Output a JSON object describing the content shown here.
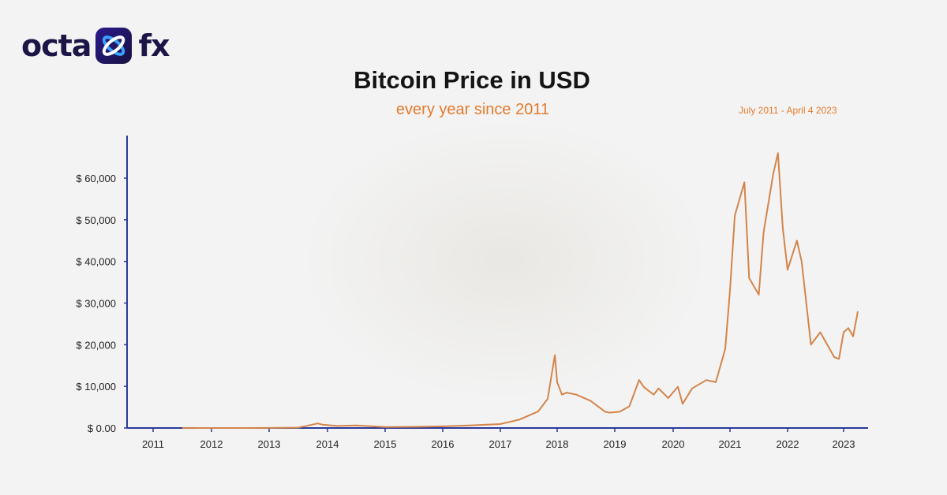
{
  "logo": {
    "left_text": "octa",
    "right_text": "fx",
    "mark_icon": "octafx-x-icon"
  },
  "subtitle": "every year since 2011",
  "date_range": "July 2011 - April 4 2023",
  "colors": {
    "line": "#d4844a",
    "axis": "#2a3a9a",
    "title": "#141414",
    "accent": "#e57a2c",
    "brand": "#1c1646"
  },
  "chart_data": {
    "type": "line",
    "title": "Bitcoin Price in USD",
    "xlabel": "",
    "ylabel": "",
    "ylim": [
      0,
      70000
    ],
    "grid": false,
    "yticks": [
      {
        "value": 0,
        "label": "$ 0.00"
      },
      {
        "value": 10000,
        "label": "$ 10,000"
      },
      {
        "value": 20000,
        "label": "$ 20,000"
      },
      {
        "value": 30000,
        "label": "$ 30,000"
      },
      {
        "value": 40000,
        "label": "$ 40,000"
      },
      {
        "value": 50000,
        "label": "$ 50,000"
      },
      {
        "value": 60000,
        "label": "$ 60,000"
      }
    ],
    "xticks": [
      "2011",
      "2012",
      "2013",
      "2014",
      "2015",
      "2016",
      "2017",
      "2018",
      "2019",
      "2020",
      "2021",
      "2022",
      "2023"
    ],
    "series": [
      {
        "x": [
          "2011-07",
          "2012-01",
          "2012-07",
          "2013-01",
          "2013-07",
          "2013-11",
          "2013-12",
          "2014-03",
          "2014-07",
          "2015-01",
          "2015-07",
          "2016-01",
          "2016-07",
          "2017-01",
          "2017-05",
          "2017-09",
          "2017-11",
          "2017-12-17",
          "2018-01",
          "2018-02",
          "2018-03",
          "2018-05",
          "2018-08",
          "2018-11",
          "2018-12",
          "2019-02",
          "2019-04",
          "2019-06",
          "2019-07",
          "2019-09",
          "2019-10",
          "2019-12",
          "2020-02",
          "2020-03",
          "2020-05",
          "2020-08",
          "2020-10",
          "2020-12",
          "2021-01",
          "2021-02",
          "2021-04",
          "2021-05",
          "2021-07",
          "2021-08",
          "2021-10",
          "2021-11",
          "2021-12",
          "2022-01",
          "2022-03",
          "2022-04",
          "2022-05",
          "2022-06",
          "2022-08",
          "2022-11",
          "2022-12",
          "2023-01",
          "2023-02",
          "2023-03",
          "2023-04"
        ],
        "values": [
          14,
          6,
          8,
          13,
          90,
          1100,
          800,
          500,
          620,
          250,
          280,
          400,
          650,
          950,
          2000,
          4000,
          7000,
          17500,
          11000,
          8000,
          8500,
          8000,
          6500,
          3900,
          3700,
          3900,
          5200,
          11500,
          9800,
          8000,
          9500,
          7200,
          9900,
          5800,
          9500,
          11500,
          11000,
          19000,
          33000,
          51000,
          59000,
          36000,
          32000,
          47000,
          61000,
          66000,
          48000,
          38000,
          45000,
          40000,
          30000,
          20000,
          23000,
          17000,
          16600,
          23000,
          24000,
          22000,
          28000
        ]
      }
    ]
  }
}
